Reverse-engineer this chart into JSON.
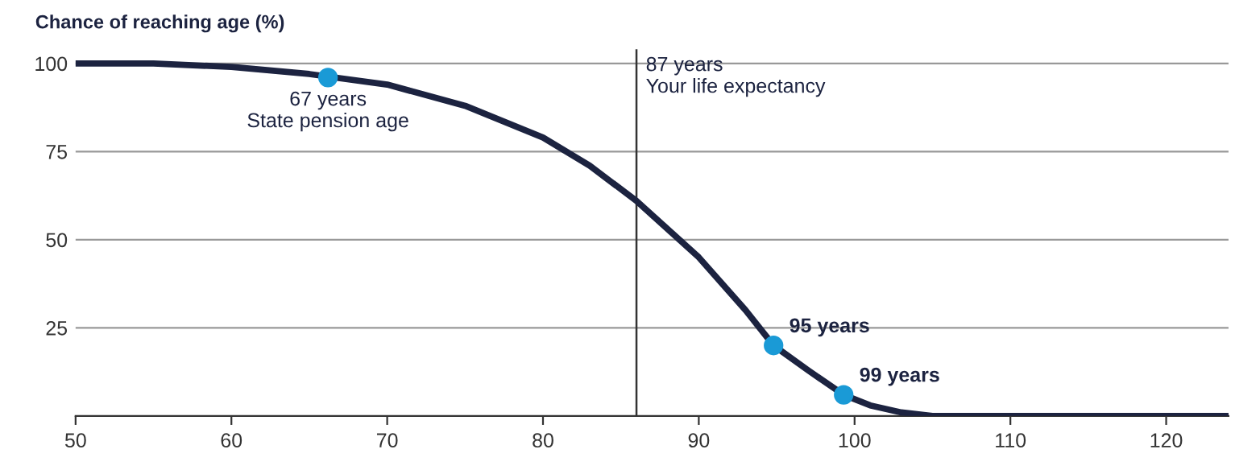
{
  "chart_data": {
    "type": "line",
    "ylabel": "Chance of reaching age (%)",
    "x": [
      50,
      55,
      60,
      65,
      70,
      75,
      80,
      83,
      86,
      90,
      93,
      94.8,
      97,
      99.3,
      101,
      103,
      105,
      110,
      124
    ],
    "series": [
      {
        "color": "#1c2340",
        "values": [
          100,
          100,
          99,
          97,
          94,
          88,
          79,
          71,
          61,
          45,
          30,
          20,
          13,
          6,
          3,
          1,
          0,
          0,
          0
        ]
      },
      {
        "type": "scatter",
        "marker": "circle",
        "color": "#1a9ad6",
        "x": [
          66.2,
          94.8,
          99.3
        ],
        "values": [
          96,
          20,
          6
        ]
      }
    ],
    "xlim": [
      50,
      124
    ],
    "xticks": [
      50,
      60,
      70,
      80,
      90,
      100,
      110,
      120
    ],
    "ylim": [
      0,
      104
    ],
    "yticks": [
      25,
      50,
      75,
      100
    ],
    "grid": "y",
    "ref_lines": [
      {
        "axis": "x",
        "value": 86,
        "label": "87 years\nYour life expectancy",
        "color": "#333333"
      }
    ],
    "annotations": [
      {
        "text": "67 years\nState pension age",
        "x": 66.2,
        "y": 96
      },
      {
        "text": "95 years",
        "x": 94.8,
        "y": 20
      },
      {
        "text": "99 years",
        "x": 99.3,
        "y": 6
      }
    ]
  }
}
